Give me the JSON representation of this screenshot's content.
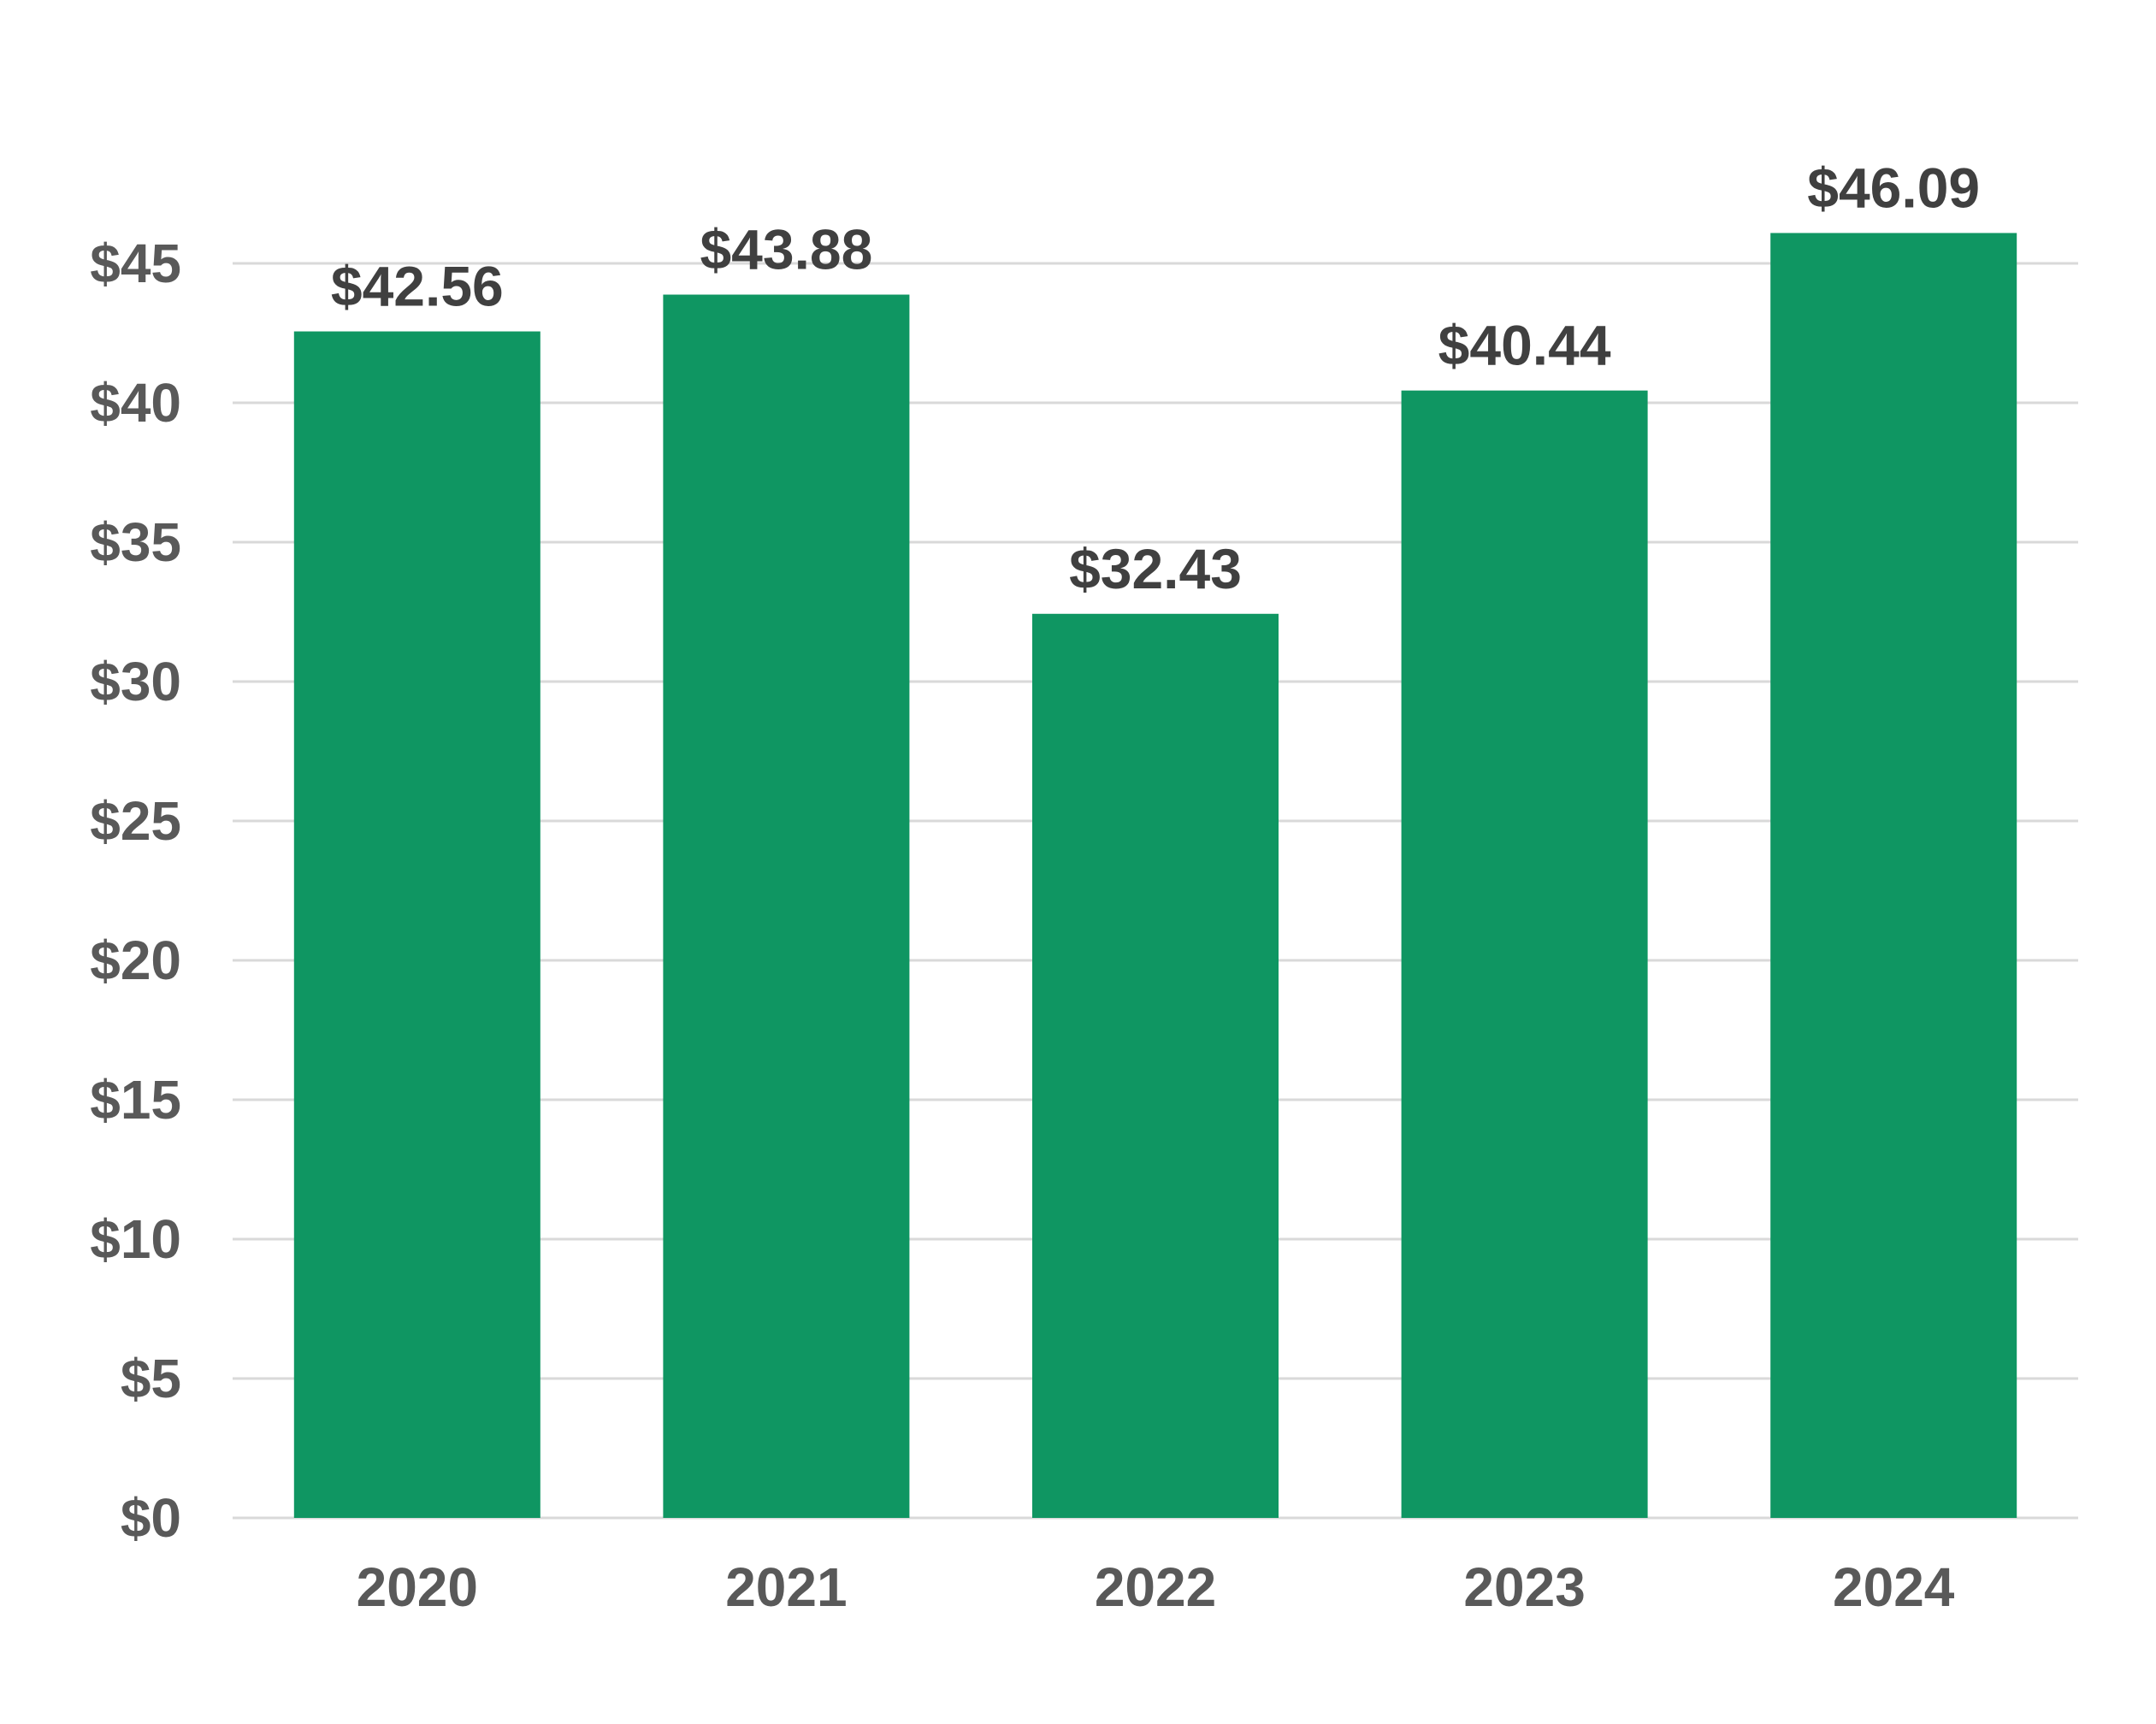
{
  "chart_data": {
    "type": "bar",
    "title": "",
    "xlabel": "",
    "ylabel": "",
    "categories": [
      "2020",
      "2021",
      "2022",
      "2023",
      "2024"
    ],
    "values": [
      42.56,
      43.88,
      32.43,
      40.44,
      46.09
    ],
    "data_labels": [
      "$42.56",
      "$43.88",
      "$32.43",
      "$40.44",
      "$46.09"
    ],
    "ylim": [
      0,
      45
    ],
    "yticks": [
      0,
      5,
      10,
      15,
      20,
      25,
      30,
      35,
      40,
      45
    ],
    "ytick_labels": [
      "$0",
      "$5",
      "$10",
      "$15",
      "$20",
      "$25",
      "$30",
      "$35",
      "$40",
      "$45"
    ],
    "grid": true,
    "legend": "none"
  },
  "colors": {
    "bar": "#0f9662",
    "grid": "#d9d9d9",
    "tick_text": "#595959",
    "label_text": "#404040"
  }
}
